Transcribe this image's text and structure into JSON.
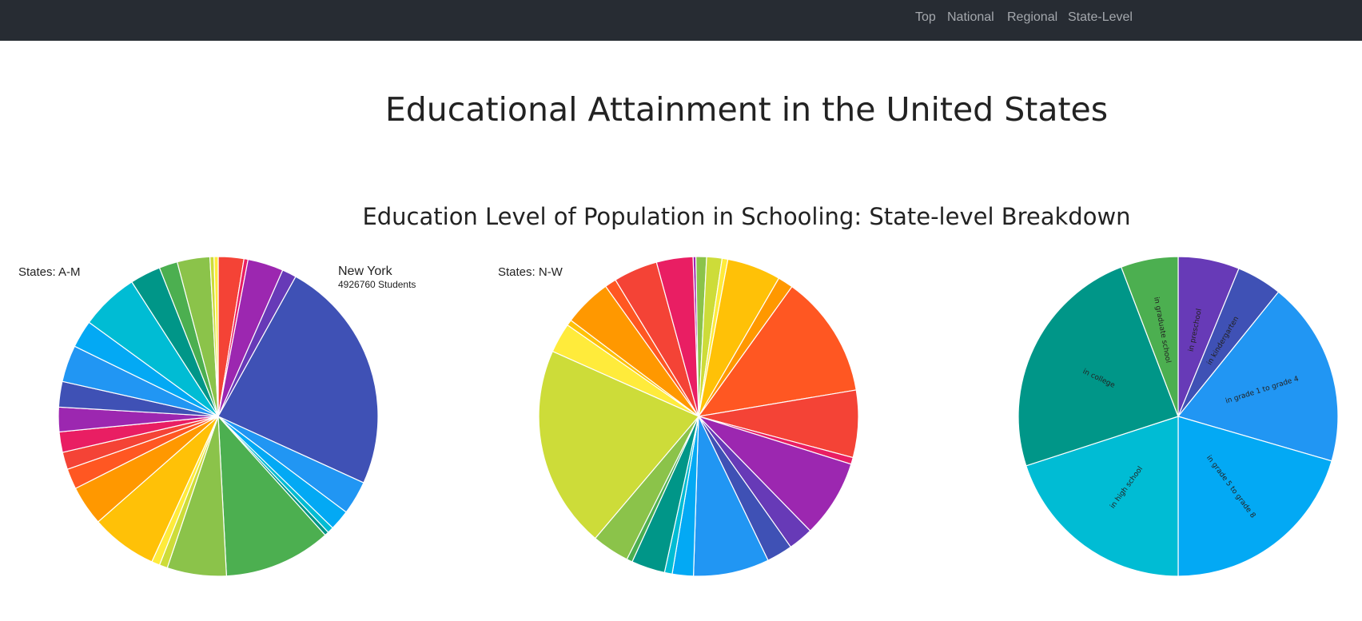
{
  "nav": {
    "links": [
      "Top",
      "National",
      "Regional",
      "State-Level"
    ]
  },
  "page": {
    "title": "Educational Attainment in the United States",
    "subtitle": "Education Level of Population in Schooling: State-level Breakdown"
  },
  "chart_data": [
    {
      "type": "pie",
      "title": "States: A-M",
      "hover_label": {
        "name": "New York",
        "value_text": "4926760 Students"
      },
      "values": [
        2.5,
        0.4,
        3.5,
        1.4,
        23.0,
        3.3,
        2.0,
        0.6,
        0.4,
        10.5,
        5.8,
        0.8,
        0.8,
        6.5,
        3.9,
        2.0,
        1.7,
        2.0,
        2.4,
        2.5,
        3.6,
        2.7,
        5.7,
        3.0,
        1.8,
        3.2,
        0.4,
        0.4
      ],
      "colors": [
        "#f44336",
        "#e91e63",
        "#9c27b0",
        "#673ab7",
        "#3f51b5",
        "#2196f3",
        "#03a9f4",
        "#00bcd4",
        "#009688",
        "#4caf50",
        "#8bc34a",
        "#cddc39",
        "#ffeb3b",
        "#ffc107",
        "#ff9800",
        "#ff5722",
        "#f44336",
        "#e91e63",
        "#9c27b0",
        "#3f51b5",
        "#2196f3",
        "#03a9f4",
        "#00bcd4",
        "#009688",
        "#4caf50",
        "#8bc34a",
        "#cddc39",
        "#ffeb3b"
      ],
      "start_angle": 0
    },
    {
      "type": "pie",
      "title": "States: N-W",
      "values": [
        0.3,
        1.1,
        1.6,
        0.6,
        5.6,
        1.6,
        12.8,
        7.0,
        0.7,
        8.1,
        2.6,
        2.7,
        7.9,
        2.2,
        0.8,
        3.5,
        0.6,
        3.9,
        21.1,
        3.1,
        0.6,
        5.0,
        1.2,
        4.6,
        3.8
      ],
      "colors": [
        "#9c27b0",
        "#8bc34a",
        "#cddc39",
        "#ffeb3b",
        "#ffc107",
        "#ff9800",
        "#ff5722",
        "#f44336",
        "#e91e63",
        "#9c27b0",
        "#673ab7",
        "#3f51b5",
        "#2196f3",
        "#03a9f4",
        "#00bcd4",
        "#009688",
        "#4caf50",
        "#8bc34a",
        "#cddc39",
        "#ffeb3b",
        "#ffc107",
        "#ff9800",
        "#ff5722",
        "#f44336",
        "#e91e63"
      ],
      "start_angle": -2
    },
    {
      "type": "pie",
      "title": "",
      "labels": [
        "in preschool",
        "in kindergarten",
        "in grade 1 to grade 4",
        "in grade 5 to grade 8",
        "in high school",
        "in college",
        "in graduate school"
      ],
      "values": [
        6.2,
        4.6,
        18.7,
        20.5,
        20.0,
        24.2,
        5.8
      ],
      "colors": [
        "#673ab7",
        "#3f51b5",
        "#2196f3",
        "#03a9f4",
        "#00bcd4",
        "#009688",
        "#4caf50"
      ],
      "start_angle": 0
    }
  ]
}
